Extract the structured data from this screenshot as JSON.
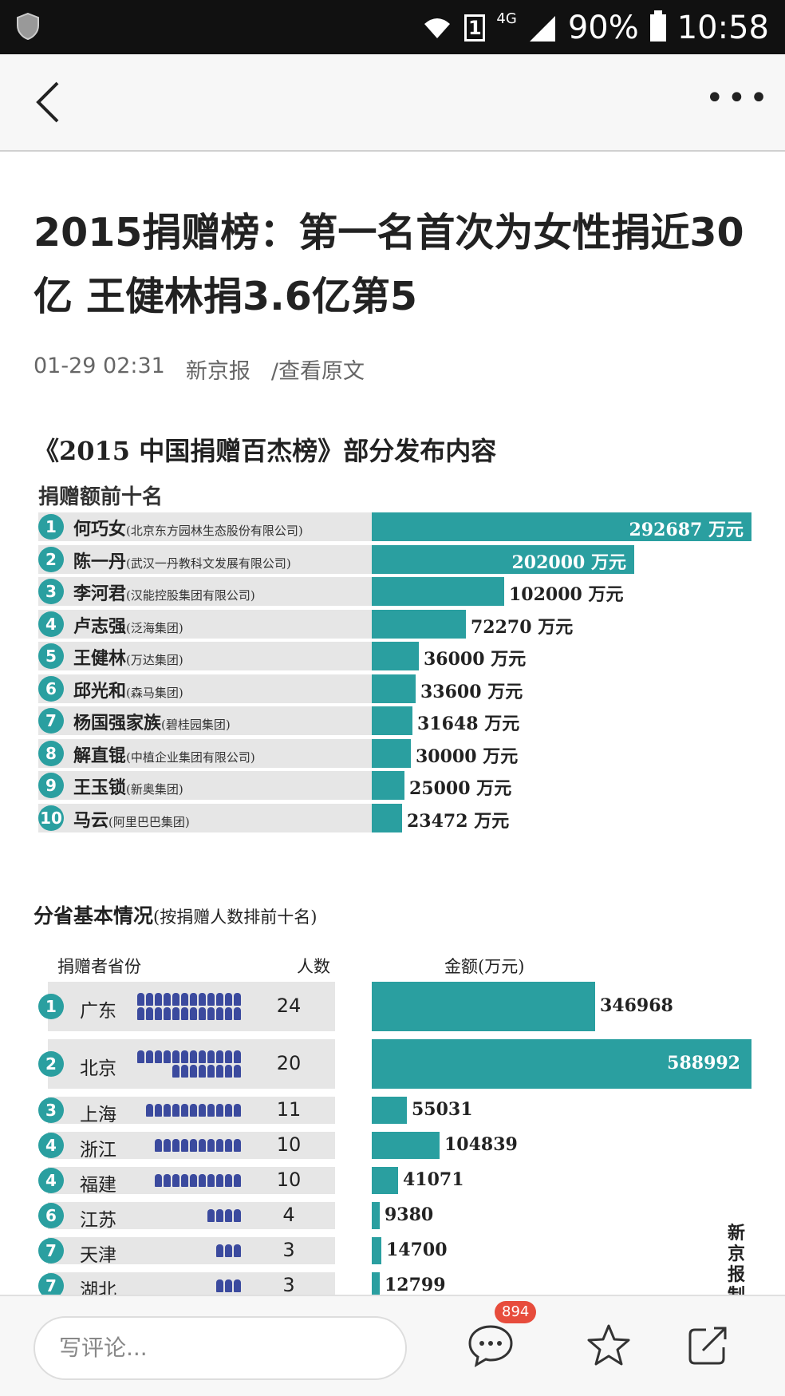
{
  "status_bar": {
    "battery": "90%",
    "time": "10:58",
    "network": "4G",
    "sim": "1"
  },
  "article": {
    "title": "2015捐赠榜：第一名首次为女性捐近30亿 王健林捐3.6亿第5",
    "date": "01-29 02:31",
    "source": "新京报",
    "view_original": "/查看原文"
  },
  "infographic": {
    "title": "《2015 中国捐赠百杰榜》部分发布内容",
    "section1_title": "捐赠额前十名",
    "top10": [
      {
        "rank": "1",
        "name": "何巧女",
        "org": "(北京东方园林生态股份有限公司)",
        "amount": 292687,
        "label": "292687 万元"
      },
      {
        "rank": "2",
        "name": "陈一丹",
        "org": "(武汉一丹教科文发展有限公司)",
        "amount": 202000,
        "label": "202000 万元"
      },
      {
        "rank": "3",
        "name": "李河君",
        "org": "(汉能控股集团有限公司)",
        "amount": 102000,
        "label": "102000 万元"
      },
      {
        "rank": "4",
        "name": "卢志强",
        "org": "(泛海集团)",
        "amount": 72270,
        "label": "72270 万元"
      },
      {
        "rank": "5",
        "name": "王健林",
        "org": "(万达集团)",
        "amount": 36000,
        "label": "36000 万元"
      },
      {
        "rank": "6",
        "name": "邱光和",
        "org": "(森马集团)",
        "amount": 33600,
        "label": "33600 万元"
      },
      {
        "rank": "7",
        "name": "杨国强家族",
        "org": "(碧桂园集团)",
        "amount": 31648,
        "label": "31648 万元"
      },
      {
        "rank": "8",
        "name": "解直锟",
        "org": "(中植企业集团有限公司)",
        "amount": 30000,
        "label": "30000 万元"
      },
      {
        "rank": "9",
        "name": "王玉锁",
        "org": "(新奥集团)",
        "amount": 25000,
        "label": "25000 万元"
      },
      {
        "rank": "10",
        "name": "马云",
        "org": "(阿里巴巴集团)",
        "amount": 23472,
        "label": "23472 万元"
      }
    ],
    "section2_title": "分省基本情况",
    "section2_note": "(按捐赠人数排前十名)",
    "col_province": "捐赠者省份",
    "col_count": "人数",
    "col_amount": "金额(万元)",
    "provinces": [
      {
        "rank": "1",
        "name": "广东",
        "count": 24,
        "amount": 346968
      },
      {
        "rank": "2",
        "name": "北京",
        "count": 20,
        "amount": 588992
      },
      {
        "rank": "3",
        "name": "上海",
        "count": 11,
        "amount": 55031
      },
      {
        "rank": "4",
        "name": "浙江",
        "count": 10,
        "amount": 104839
      },
      {
        "rank": "4",
        "name": "福建",
        "count": 10,
        "amount": 41071
      },
      {
        "rank": "6",
        "name": "江苏",
        "count": 4,
        "amount": 9380
      },
      {
        "rank": "7",
        "name": "天津",
        "count": 3,
        "amount": 14700
      },
      {
        "rank": "7",
        "name": "湖北",
        "count": 3,
        "amount": 12799
      }
    ],
    "credit": "新京报制",
    "accent_color": "#2a9fa0",
    "person_color": "#3b4a9e"
  },
  "bottom_bar": {
    "comment_placeholder": "写评论...",
    "comment_count": "894"
  }
}
